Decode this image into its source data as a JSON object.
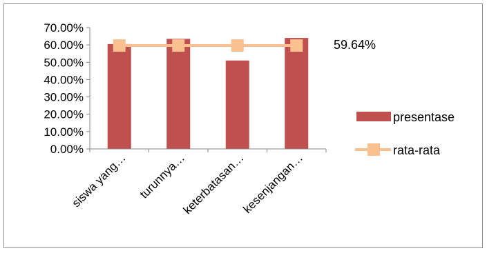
{
  "chart_data": {
    "type": "bar",
    "categories": [
      "siswa yang…",
      "turunnya…",
      "keterbatasan…",
      "kesenjangan…"
    ],
    "series": [
      {
        "name": "presentase",
        "type": "bar",
        "values": [
          60.5,
          63.5,
          51.0,
          64.0
        ],
        "color": "#c0504d"
      },
      {
        "name": "rata-rata",
        "type": "line",
        "values": [
          59.64,
          59.64,
          59.64,
          59.64
        ],
        "color": "#fac090"
      }
    ],
    "ylim": [
      0,
      70
    ],
    "yticks": [
      "0.00%",
      "10.00%",
      "20.00%",
      "30.00%",
      "40.00%",
      "50.00%",
      "60.00%",
      "70.00%"
    ],
    "annotation": "59.64%",
    "grid": false,
    "legend_position": "right"
  }
}
